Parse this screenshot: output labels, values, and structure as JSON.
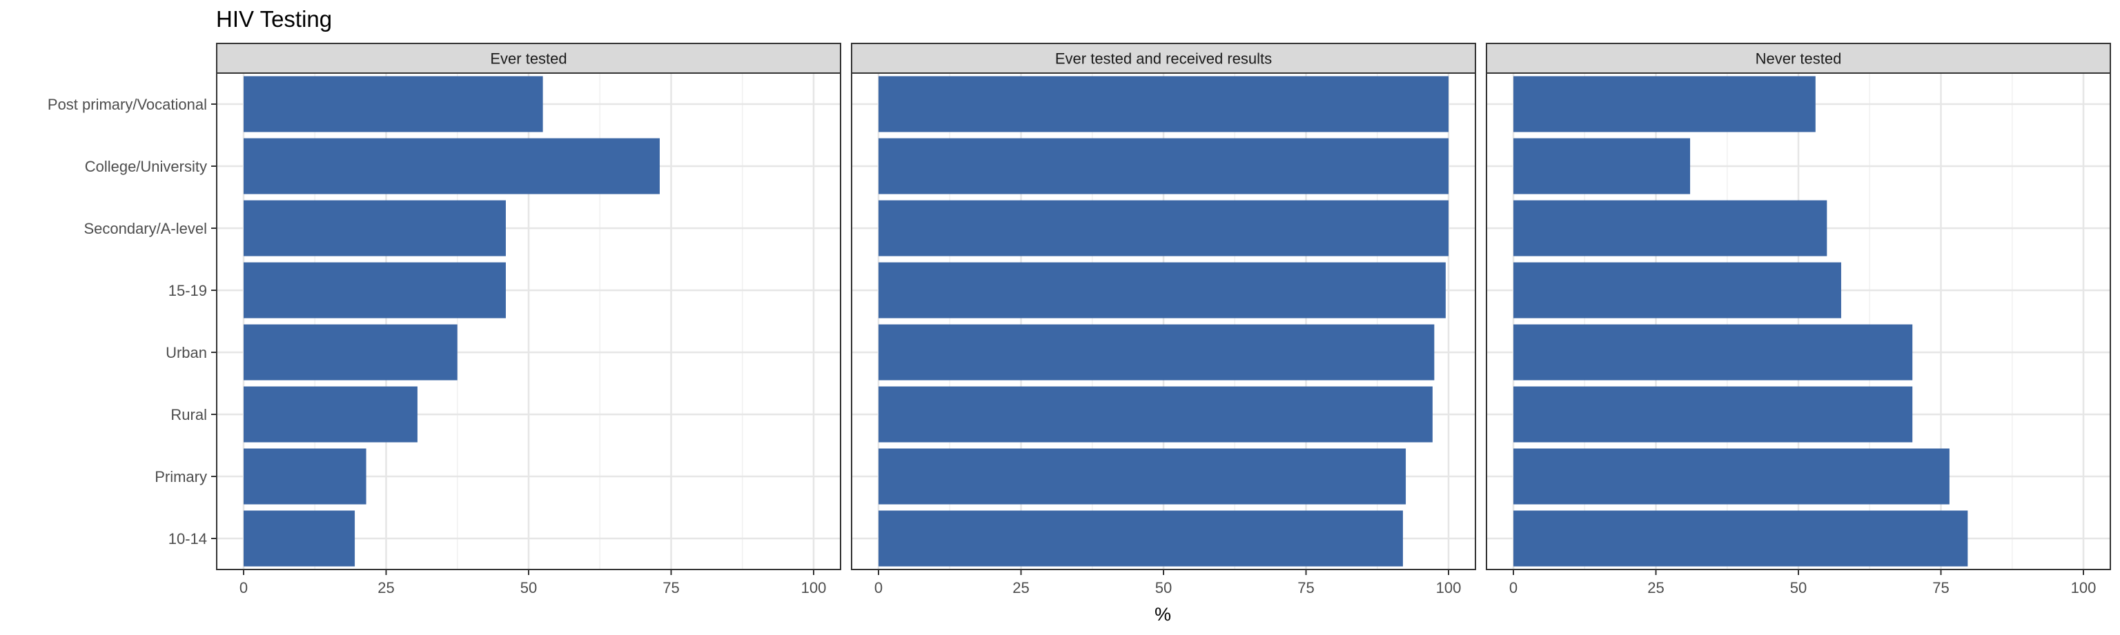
{
  "chart_data": {
    "type": "bar",
    "orientation": "horizontal",
    "title": "HIV Testing",
    "xlabel": "%",
    "ylabel": "",
    "xlim": [
      0,
      100
    ],
    "x_ticks": [
      0,
      25,
      50,
      75,
      100
    ],
    "grid": true,
    "categories": [
      "Post primary/Vocational",
      "College/University",
      "Secondary/A-level",
      "15-19",
      "Urban",
      "Rural",
      "Primary",
      "10-14"
    ],
    "bar_color": "#3C67A5",
    "panels": [
      {
        "name": "Ever tested",
        "values": [
          52.5,
          73,
          46,
          46,
          37.5,
          30.5,
          21.5,
          19.5
        ]
      },
      {
        "name": "Ever tested and received results",
        "values": [
          100,
          100,
          100,
          99.5,
          97.5,
          97.2,
          92.5,
          92
        ]
      },
      {
        "name": "Never tested",
        "values": [
          53,
          31,
          55,
          57.5,
          70,
          70,
          76.5,
          79.7
        ]
      }
    ]
  }
}
